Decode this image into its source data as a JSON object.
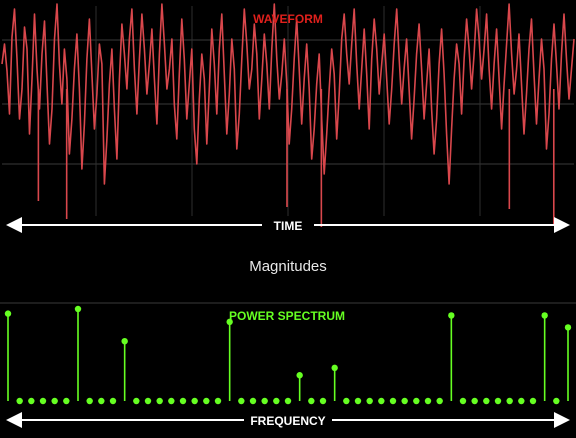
{
  "chart_data": [
    {
      "type": "line",
      "title": "WAVEFORM",
      "xlabel": "TIME",
      "ylabel": "",
      "grid": true,
      "color": "#d9474c",
      "series": [
        {
          "values": [
            0.35,
            0.55,
            0.28,
            -0.15,
            0.62,
            0.9,
            0.4,
            -0.2,
            0.1,
            0.72,
            0.5,
            -0.35,
            0.2,
            0.85,
            0.3,
            -0.1,
            0.45,
            0.78,
            0.15,
            -0.45,
            -0.1,
            0.6,
            0.95,
            0.35,
            -0.05,
            0.5,
            0.2,
            -0.55,
            -0.2,
            0.3,
            0.65,
            0.1,
            -0.7,
            -0.25,
            0.4,
            0.8,
            0.25,
            -0.3,
            0.05,
            0.55,
            0.35,
            -0.85,
            -0.4,
            0.15,
            0.5,
            -0.1,
            -0.6,
            0.2,
            0.75,
            0.45,
            0.1,
            0.6,
            0.9,
            0.3,
            -0.15,
            0.4,
            0.85,
            0.5,
            0.05,
            0.35,
            0.7,
            0.2,
            -0.25,
            0.45,
            0.95,
            0.55,
            0.1,
            0.3,
            0.6,
            -0.05,
            -0.4,
            0.25,
            0.8,
            0.4,
            -0.2,
            0.15,
            0.5,
            -0.3,
            -0.65,
            0.0,
            0.45,
            0.2,
            -0.45,
            0.1,
            0.7,
            0.35,
            -0.15,
            0.5,
            0.85,
            0.25,
            -0.35,
            0.05,
            0.6,
            0.3,
            -0.5,
            -0.15,
            0.4,
            0.9,
            0.55,
            0.1,
            0.3,
            0.75,
            0.45,
            -0.2,
            0.2,
            0.65,
            0.35,
            -0.1,
            0.5,
            0.95,
            0.4,
            0.0,
            0.25,
            0.6,
            0.15,
            -0.45,
            -0.1,
            0.4,
            0.8,
            0.3,
            -0.25,
            0.2,
            0.55,
            0.1,
            -0.6,
            -0.3,
            0.15,
            0.45,
            -0.2,
            -0.75,
            -0.35,
            0.1,
            0.5,
            0.25,
            -0.4,
            0.05,
            0.6,
            0.85,
            0.45,
            0.15,
            0.55,
            0.9,
            0.35,
            -0.1,
            0.3,
            0.7,
            0.25,
            -0.3,
            0.4,
            0.8,
            0.5,
            0.05,
            0.35,
            0.65,
            0.2,
            -0.25,
            0.1,
            0.55,
            0.9,
            0.4,
            -0.05,
            0.3,
            0.6,
            0.1,
            -0.4,
            0.0,
            0.45,
            0.75,
            0.3,
            -0.2,
            0.15,
            0.5,
            -0.1,
            -0.55,
            -0.2,
            0.35,
            0.7,
            0.25,
            -0.35,
            -0.85,
            -0.3,
            0.2,
            0.55,
            0.35,
            -0.15,
            0.4,
            0.8,
            0.5,
            0.1,
            0.45,
            0.9,
            0.6,
            0.2,
            0.5,
            0.85,
            0.3,
            -0.1,
            0.35,
            0.7,
            0.2,
            -0.3,
            0.15,
            0.55,
            0.95,
            0.45,
            0.05,
            0.3,
            0.65,
            0.15,
            -0.35,
            0.05,
            0.5,
            0.8,
            0.25,
            -0.25,
            0.2,
            0.6,
            0.3,
            -0.5,
            -0.15,
            0.4,
            0.75,
            0.35,
            -0.1,
            0.45,
            0.85,
            0.4,
            0.0,
            0.3,
            0.6
          ],
          "min_markers": [
            -0.72,
            -0.9,
            -0.78,
            -0.98,
            -0.8,
            -0.95
          ]
        }
      ],
      "ylim": [
        -1.05,
        1.05
      ]
    },
    {
      "type": "stem",
      "title": "POWER SPECTRUM",
      "xlabel": "FREQUENCY",
      "ylabel": "",
      "color": "#66ff22",
      "bins": 49,
      "series": [
        {
          "values": [
            0.95,
            0,
            0,
            0,
            0,
            0,
            1.0,
            0,
            0,
            0,
            0.65,
            0,
            0,
            0,
            0,
            0,
            0,
            0,
            0,
            0.86,
            0,
            0,
            0,
            0,
            0,
            0.28,
            0,
            0,
            0.36,
            0,
            0,
            0,
            0,
            0,
            0,
            0,
            0,
            0,
            0.93,
            0,
            0,
            0,
            0,
            0,
            0,
            0,
            0.93,
            0,
            0.8
          ]
        }
      ],
      "ylim": [
        0,
        1.0
      ]
    }
  ],
  "middle_label": "Magnitudes"
}
